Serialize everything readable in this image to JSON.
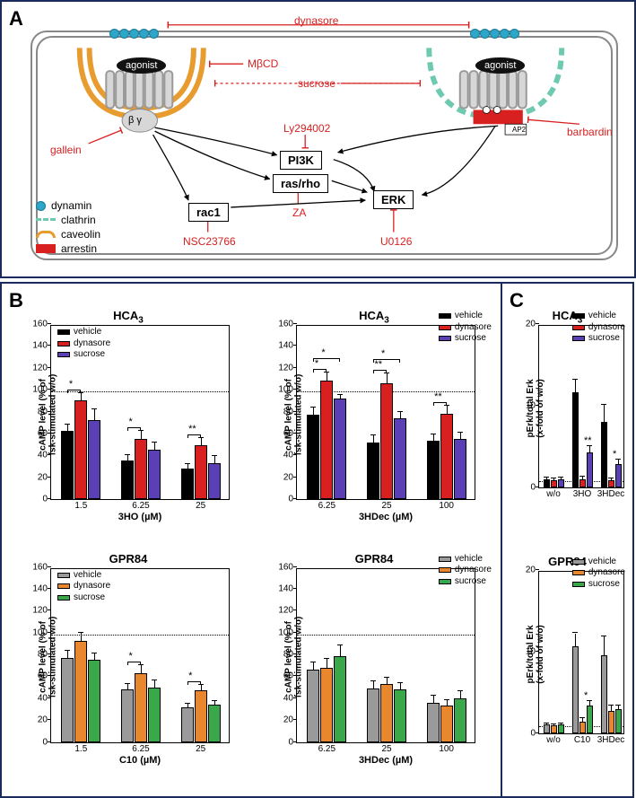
{
  "panelA": {
    "label": "A",
    "inhibitors": {
      "dynasore": "dynasore",
      "mbcd": "MβCD",
      "sucrose": "sucrose",
      "gallein": "gallein",
      "ly294002": "Ly294002",
      "za": "ZA",
      "nsc": "NSC23766",
      "u0126": "U0126",
      "barbardin": "barbardin"
    },
    "nodes": {
      "agonist_left": "agonist",
      "agonist_right": "agonist",
      "bg": "β  γ",
      "pi3k": "PI3K",
      "rasrho": "ras/rho",
      "rac1": "rac1",
      "erk": "ERK",
      "ap2": "AP2"
    },
    "legend": {
      "dynamin": "dynamin",
      "clathrin": "clathrin",
      "caveolin": "caveolin",
      "arrestin": "arrestin"
    }
  },
  "palette": {
    "hca3_vehicle": "#000000",
    "hca3_dynasore": "#d82020",
    "hca3_sucrose": "#5b3fb5",
    "gpr84_vehicle": "#9a9a9a",
    "gpr84_dynasore": "#e8872e",
    "gpr84_sucrose": "#3aa84a"
  },
  "panelB": {
    "label": "B",
    "charts": [
      {
        "id": "b1",
        "title": "HCA",
        "title_sub": "3",
        "receptor": "HCA3",
        "ylabel": "cAMP level (% of\nfsk-stimulated w/o)",
        "xlabel": "3HO (µM)",
        "ylim": [
          0,
          160
        ],
        "ytick_step": 20,
        "ref": 100,
        "legend_pos": "inside",
        "categories": [
          "1.5",
          "6.25",
          "25"
        ],
        "series": [
          {
            "name": "vehicle",
            "color_key": "hca3_vehicle",
            "values": [
              62,
              35,
              28
            ],
            "err": [
              6,
              5,
              4
            ]
          },
          {
            "name": "dynasore",
            "color_key": "hca3_dynasore",
            "values": [
              90,
              55,
              49
            ],
            "err": [
              7,
              7,
              7
            ]
          },
          {
            "name": "sucrose",
            "color_key": "hca3_sucrose",
            "values": [
              72,
              45,
              33
            ],
            "err": [
              10,
              7,
              6
            ]
          }
        ],
        "sig": [
          {
            "group": 0,
            "from": 0,
            "to": 1,
            "label": "*"
          },
          {
            "group": 1,
            "from": 0,
            "to": 1,
            "label": "*"
          },
          {
            "group": 2,
            "from": 0,
            "to": 1,
            "label": "**"
          }
        ]
      },
      {
        "id": "b2",
        "title": "HCA",
        "title_sub": "3",
        "receptor": "HCA3",
        "ylabel": "cAMP level (% of\nfsk-stimulated w/o)",
        "xlabel": "3HDec (µM)",
        "ylim": [
          0,
          160
        ],
        "ytick_step": 20,
        "ref": 100,
        "legend_pos": "top-right",
        "categories": [
          "6.25",
          "25",
          "100"
        ],
        "series": [
          {
            "name": "vehicle",
            "color_key": "hca3_vehicle",
            "values": [
              77,
              52,
              53
            ],
            "err": [
              7,
              6,
              6
            ]
          },
          {
            "name": "dynasore",
            "color_key": "hca3_dynasore",
            "values": [
              108,
              106,
              78
            ],
            "err": [
              8,
              9,
              7
            ]
          },
          {
            "name": "sucrose",
            "color_key": "hca3_sucrose",
            "values": [
              92,
              74,
              55
            ],
            "err": [
              3,
              6,
              6
            ]
          }
        ],
        "sig": [
          {
            "group": 0,
            "from": 0,
            "to": 1,
            "label": "*"
          },
          {
            "group": 0,
            "from": 0,
            "to": 2,
            "label": "*",
            "level": 1
          },
          {
            "group": 1,
            "from": 0,
            "to": 1,
            "label": "**"
          },
          {
            "group": 1,
            "from": 0,
            "to": 2,
            "label": "*",
            "level": 1
          },
          {
            "group": 2,
            "from": 0,
            "to": 1,
            "label": "**"
          }
        ]
      },
      {
        "id": "b3",
        "title": "GPR84",
        "title_sub": "",
        "receptor": "GPR84",
        "ylabel": "cAMP level (% of\nfsk-stimulated w/o)",
        "xlabel": "C10 (µM)",
        "ylim": [
          0,
          160
        ],
        "ytick_step": 20,
        "ref": 100,
        "legend_pos": "inside",
        "categories": [
          "1.5",
          "6.25",
          "25"
        ],
        "series": [
          {
            "name": "vehicle",
            "color_key": "gpr84_vehicle",
            "values": [
              77,
              48,
              32
            ],
            "err": [
              6,
              5,
              3
            ]
          },
          {
            "name": "dynasore",
            "color_key": "gpr84_dynasore",
            "values": [
              92,
              63,
              47
            ],
            "err": [
              8,
              7,
              5
            ]
          },
          {
            "name": "sucrose",
            "color_key": "gpr84_sucrose",
            "values": [
              75,
              50,
              34
            ],
            "err": [
              6,
              6,
              3
            ]
          }
        ],
        "sig": [
          {
            "group": 1,
            "from": 0,
            "to": 1,
            "label": "*"
          },
          {
            "group": 2,
            "from": 0,
            "to": 1,
            "label": "*"
          }
        ]
      },
      {
        "id": "b4",
        "title": "GPR84",
        "title_sub": "",
        "receptor": "GPR84",
        "ylabel": "cAMP level (% of\nfsk-stimulated w/o)",
        "xlabel": "3HDec (µM)",
        "ylim": [
          0,
          160
        ],
        "ytick_step": 20,
        "ref": 100,
        "legend_pos": "top-right",
        "categories": [
          "6.25",
          "25",
          "100"
        ],
        "series": [
          {
            "name": "vehicle",
            "color_key": "gpr84_vehicle",
            "values": [
              66,
              49,
              36
            ],
            "err": [
              7,
              6,
              6
            ]
          },
          {
            "name": "dynasore",
            "color_key": "gpr84_dynasore",
            "values": [
              68,
              53,
              33
            ],
            "err": [
              8,
              6,
              5
            ]
          },
          {
            "name": "sucrose",
            "color_key": "gpr84_sucrose",
            "values": [
              78,
              48,
              40
            ],
            "err": [
              10,
              6,
              6
            ]
          }
        ],
        "sig": []
      }
    ]
  },
  "panelC": {
    "label": "C",
    "charts": [
      {
        "id": "c1",
        "title": "HCA",
        "title_sub": "3",
        "receptor": "HCA3",
        "ylabel": "pErk/total Erk\n(x-fold of w/o)",
        "ylim": [
          0,
          20
        ],
        "ytick_step": 10,
        "ref": 1,
        "categories": [
          "w/o",
          "3HO",
          "3HDec"
        ],
        "series": [
          {
            "name": "vehicle",
            "color_key": "hca3_vehicle",
            "values": [
              1.0,
              11.7,
              8.0
            ],
            "err": [
              0.2,
              1.5,
              2.1
            ]
          },
          {
            "name": "dynasore",
            "color_key": "hca3_dynasore",
            "values": [
              0.9,
              1.0,
              0.9
            ],
            "err": [
              0.2,
              0.3,
              0.2
            ]
          },
          {
            "name": "sucrose",
            "color_key": "hca3_sucrose",
            "values": [
              1.0,
              4.3,
              2.9
            ],
            "err": [
              0.2,
              0.8,
              0.5
            ]
          }
        ],
        "sig": [
          {
            "group": 1,
            "bar": 2,
            "label": "**"
          },
          {
            "group": 2,
            "bar": 2,
            "label": "*"
          }
        ]
      },
      {
        "id": "c2",
        "title": "GPR84",
        "title_sub": "",
        "receptor": "GPR84",
        "ylabel": "pErk/total Erk\n(x-fold of w/o)",
        "ylim": [
          0,
          20
        ],
        "ytick_step": 10,
        "ref": 1,
        "categories": [
          "w/o",
          "C10",
          "3HDec"
        ],
        "series": [
          {
            "name": "vehicle",
            "color_key": "gpr84_vehicle",
            "values": [
              1.0,
              10.6,
              9.5
            ],
            "err": [
              0.2,
              1.6,
              2.3
            ]
          },
          {
            "name": "dynasore",
            "color_key": "gpr84_dynasore",
            "values": [
              0.9,
              1.4,
              2.7
            ],
            "err": [
              0.2,
              0.4,
              0.7
            ]
          },
          {
            "name": "sucrose",
            "color_key": "gpr84_sucrose",
            "values": [
              1.0,
              3.3,
              2.9
            ],
            "err": [
              0.2,
              0.6,
              0.5
            ]
          }
        ],
        "sig": [
          {
            "group": 1,
            "bar": 2,
            "label": "*"
          }
        ]
      }
    ]
  }
}
